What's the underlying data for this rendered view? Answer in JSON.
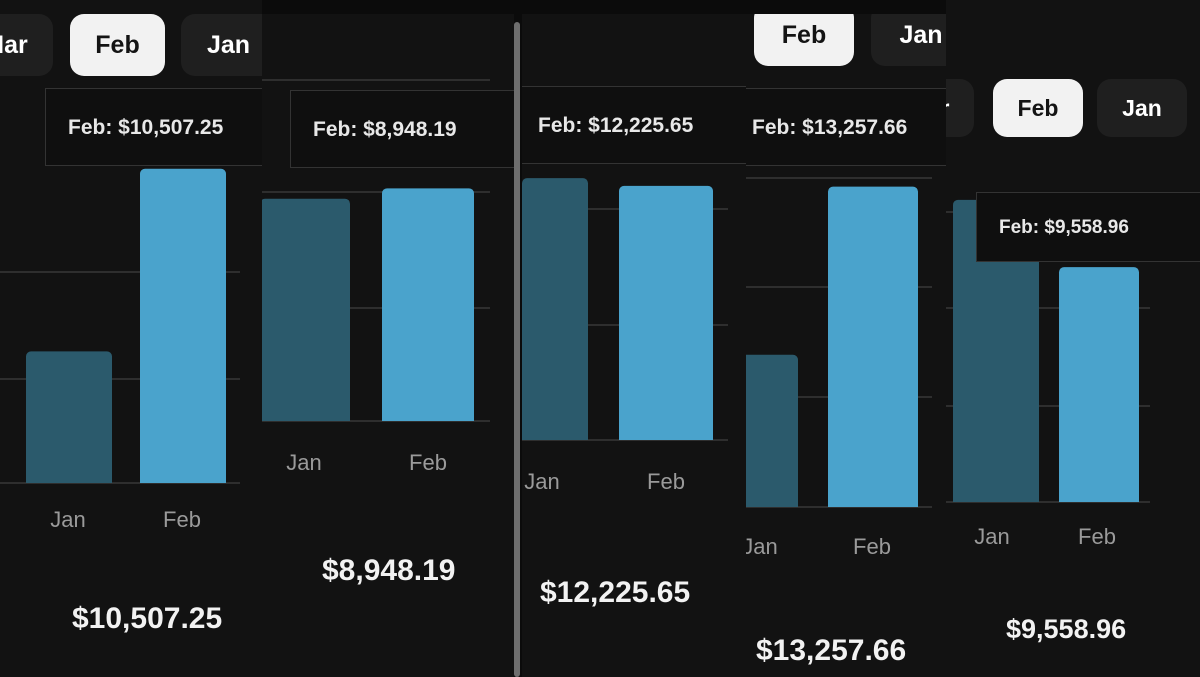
{
  "colors": {
    "jan_bar": "#2b5a6c",
    "feb_bar": "#4aa3cc",
    "grid": "#2e2e2e"
  },
  "panels": [
    {
      "tabs": [
        {
          "label": "Mar",
          "active": false
        },
        {
          "label": "Feb",
          "active": true
        },
        {
          "label": "Jan",
          "active": false
        }
      ],
      "tooltip": "Feb: $10,507.25",
      "total": "$10,507.25"
    },
    {
      "tabs": [],
      "tooltip": "Feb: $8,948.19",
      "total": "$8,948.19"
    },
    {
      "tabs": [],
      "tooltip": "Feb: $12,225.65",
      "total": "$12,225.65"
    },
    {
      "tabs": [
        {
          "label": "Feb",
          "active": true
        },
        {
          "label": "Jan",
          "active": false
        }
      ],
      "tooltip": "Feb: $13,257.66",
      "total": "$13,257.66"
    },
    {
      "tabs": [
        {
          "label": "Mar",
          "active": false
        },
        {
          "label": "Feb",
          "active": true
        },
        {
          "label": "Jan",
          "active": false
        }
      ],
      "tooltip": "Feb: $9,558.96",
      "total": "$9,558.96"
    }
  ],
  "chart_data": [
    {
      "type": "bar",
      "categories": [
        "Jan",
        "Feb"
      ],
      "values": [
        4400,
        10507.25
      ],
      "ylim": [
        0,
        10800
      ],
      "grid": true
    },
    {
      "type": "bar",
      "categories": [
        "Jan",
        "Feb"
      ],
      "values": [
        8550,
        8948.19
      ],
      "ylim": [
        0,
        9500
      ],
      "grid": true
    },
    {
      "type": "bar",
      "categories": [
        "Jan",
        "Feb"
      ],
      "values": [
        12600,
        12225.65
      ],
      "ylim": [
        0,
        12800
      ],
      "grid": true
    },
    {
      "type": "bar",
      "categories": [
        "Jan",
        "Feb"
      ],
      "values": [
        6300,
        13257.66
      ],
      "ylim": [
        0,
        13700
      ],
      "grid": true
    },
    {
      "type": "bar",
      "categories": [
        "Jan",
        "Feb"
      ],
      "values": [
        12300,
        9558.96
      ],
      "ylim": [
        0,
        12700
      ],
      "grid": true
    }
  ]
}
